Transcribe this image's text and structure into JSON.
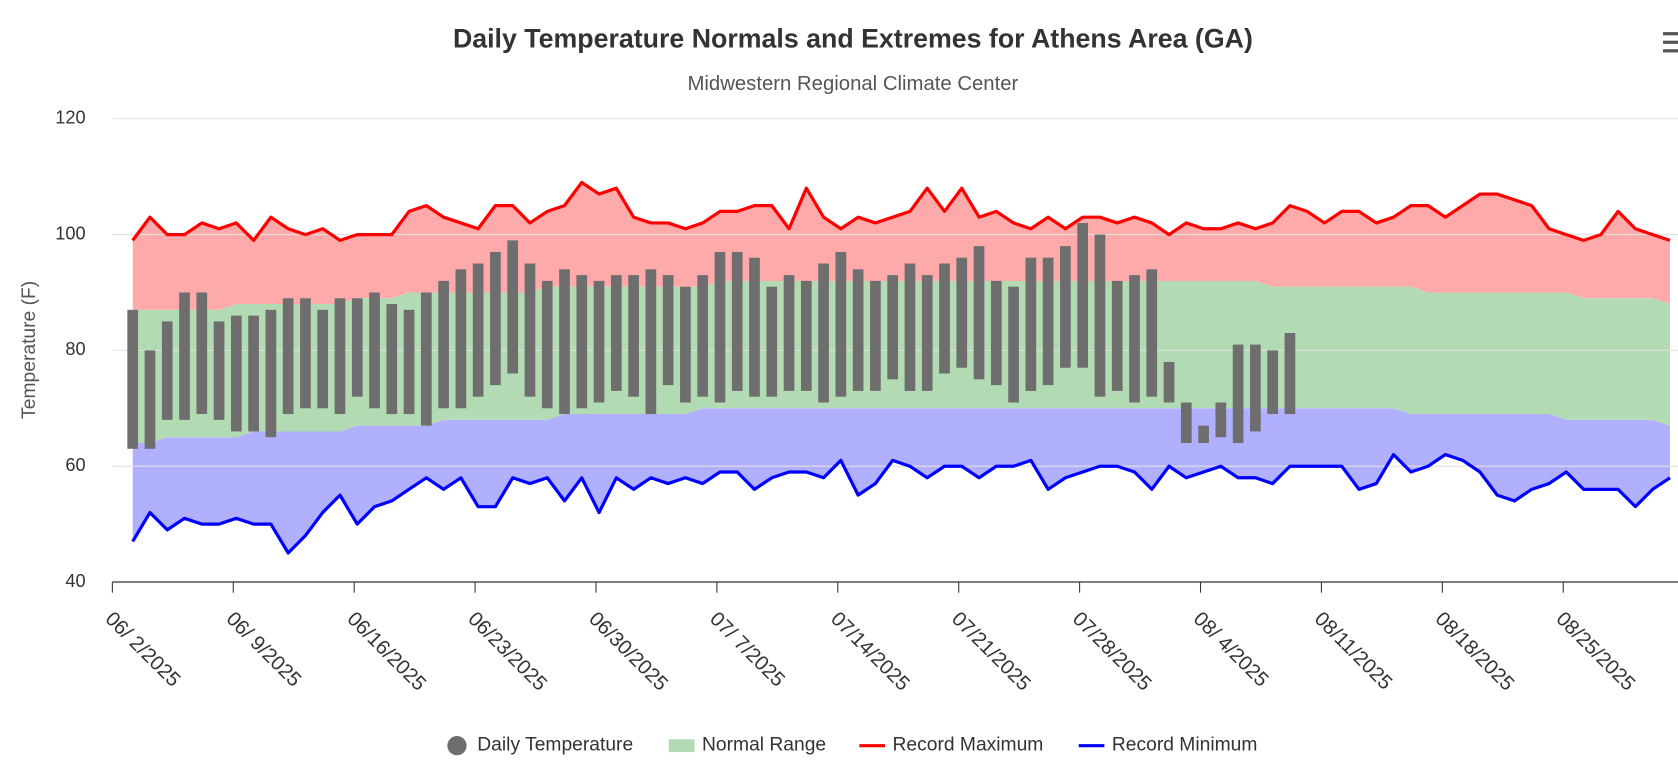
{
  "chart_data": {
    "type": "line",
    "title": "Daily Temperature Normals and Extremes for Athens Area (GA)",
    "subtitle": "Midwestern Regional Climate Center",
    "y_label": "Temperature (F)",
    "ylim": [
      40,
      120
    ],
    "yticks": [
      40,
      60,
      80,
      100,
      120
    ],
    "grid": true,
    "legend": "bottom",
    "categories": [
      "06/ 2/2025",
      null,
      null,
      null,
      null,
      null,
      null,
      "06/ 9/2025",
      null,
      null,
      null,
      null,
      null,
      null,
      "06/16/2025",
      null,
      null,
      null,
      null,
      null,
      null,
      "06/23/2025",
      null,
      null,
      null,
      null,
      null,
      null,
      "06/30/2025",
      null,
      null,
      null,
      null,
      null,
      null,
      "07/ 7/2025",
      null,
      null,
      null,
      null,
      null,
      null,
      "07/14/2025",
      null,
      null,
      null,
      null,
      null,
      null,
      "07/21/2025",
      null,
      null,
      null,
      null,
      null,
      null,
      "07/28/2025",
      null,
      null,
      null,
      null,
      null,
      null,
      "08/ 4/2025",
      null,
      null,
      null,
      null,
      null,
      null,
      "08/11/2025",
      null,
      null,
      null,
      null,
      null,
      null,
      "08/18/2025",
      null,
      null,
      null,
      null,
      null,
      null,
      "08/25/2025",
      null,
      null,
      null,
      null,
      null
    ],
    "series": [
      {
        "name": "Daily Temperature",
        "type": "columnrange",
        "color": "#6e6e6e",
        "low": [
          63,
          63,
          68,
          68,
          69,
          68,
          66,
          66,
          65,
          69,
          70,
          70,
          69,
          72,
          70,
          69,
          69,
          67,
          70,
          70,
          72,
          74,
          76,
          72,
          70,
          69,
          70,
          71,
          73,
          72,
          69,
          74,
          71,
          72,
          71,
          73,
          72,
          72,
          73,
          73,
          71,
          72,
          73,
          73,
          75,
          73,
          73,
          76,
          77,
          75,
          74,
          71,
          73,
          74,
          77,
          77,
          72,
          73,
          71,
          72,
          71,
          64,
          64,
          65,
          64,
          66,
          69,
          69,
          null,
          null,
          null,
          null,
          null,
          null,
          null,
          null,
          null,
          null,
          null,
          null,
          null,
          null,
          null,
          null,
          null,
          null,
          null,
          null,
          null,
          null
        ],
        "high": [
          87,
          80,
          85,
          90,
          90,
          85,
          86,
          86,
          87,
          89,
          89,
          87,
          89,
          89,
          90,
          88,
          87,
          90,
          92,
          94,
          95,
          97,
          99,
          95,
          92,
          94,
          93,
          92,
          93,
          93,
          94,
          93,
          91,
          93,
          97,
          97,
          96,
          91,
          93,
          92,
          95,
          97,
          94,
          92,
          93,
          95,
          93,
          95,
          96,
          98,
          92,
          91,
          96,
          96,
          98,
          102,
          100,
          92,
          93,
          94,
          78,
          71,
          67,
          71,
          81,
          81,
          80,
          83,
          null,
          null,
          null,
          null,
          null,
          null,
          null,
          null,
          null,
          null,
          null,
          null,
          null,
          null,
          null,
          null,
          null,
          null,
          null,
          null,
          null,
          null
        ]
      },
      {
        "name": "Normal Range",
        "type": "arearange",
        "color": "#b3dbb3",
        "low": [
          64,
          64,
          65,
          65,
          65,
          65,
          65,
          66,
          66,
          66,
          66,
          66,
          66,
          67,
          67,
          67,
          67,
          67,
          68,
          68,
          68,
          68,
          68,
          68,
          68,
          69,
          69,
          69,
          69,
          69,
          69,
          69,
          69,
          70,
          70,
          70,
          70,
          70,
          70,
          70,
          70,
          70,
          70,
          70,
          70,
          70,
          70,
          70,
          70,
          70,
          70,
          70,
          70,
          70,
          70,
          70,
          70,
          70,
          70,
          70,
          70,
          70,
          70,
          70,
          70,
          70,
          70,
          70,
          70,
          70,
          70,
          70,
          70,
          70,
          69,
          69,
          69,
          69,
          69,
          69,
          69,
          69,
          69,
          68,
          68,
          68,
          68,
          68,
          68,
          67
        ],
        "high": [
          87,
          87,
          87,
          87,
          87,
          87,
          88,
          88,
          88,
          88,
          88,
          88,
          88,
          89,
          89,
          89,
          90,
          90,
          90,
          90,
          90,
          90,
          90,
          90,
          91,
          91,
          91,
          91,
          91,
          91,
          91,
          91,
          91,
          91,
          92,
          92,
          92,
          92,
          92,
          92,
          92,
          92,
          92,
          92,
          92,
          92,
          92,
          92,
          92,
          92,
          92,
          92,
          92,
          92,
          92,
          92,
          92,
          92,
          92,
          92,
          92,
          92,
          92,
          92,
          92,
          92,
          91,
          91,
          91,
          91,
          91,
          91,
          91,
          91,
          91,
          90,
          90,
          90,
          90,
          90,
          90,
          90,
          90,
          90,
          89,
          89,
          89,
          89,
          89,
          88
        ]
      },
      {
        "name": "Record Maximum",
        "type": "line",
        "color": "#ff0000",
        "fill": "#ffaaaa",
        "values": [
          99,
          103,
          100,
          100,
          102,
          101,
          102,
          99,
          103,
          101,
          100,
          101,
          99,
          100,
          100,
          100,
          104,
          105,
          103,
          102,
          101,
          105,
          105,
          102,
          104,
          105,
          109,
          107,
          108,
          103,
          102,
          102,
          101,
          102,
          104,
          104,
          105,
          105,
          101,
          108,
          103,
          101,
          103,
          102,
          103,
          104,
          108,
          104,
          108,
          103,
          104,
          102,
          101,
          103,
          101,
          103,
          103,
          102,
          103,
          102,
          100,
          102,
          101,
          101,
          102,
          101,
          102,
          105,
          104,
          102,
          104,
          104,
          102,
          103,
          105,
          105,
          103,
          105,
          107,
          107,
          106,
          105,
          101,
          100,
          99,
          100,
          104,
          101,
          100,
          99
        ]
      },
      {
        "name": "Record Minimum",
        "type": "line",
        "color": "#0000ff",
        "fill": "#b0b0ff",
        "values": [
          47,
          52,
          49,
          51,
          50,
          50,
          51,
          50,
          50,
          45,
          48,
          52,
          55,
          50,
          53,
          54,
          56,
          58,
          56,
          58,
          53,
          53,
          58,
          57,
          58,
          54,
          58,
          52,
          58,
          56,
          58,
          57,
          58,
          57,
          59,
          59,
          56,
          58,
          59,
          59,
          58,
          61,
          55,
          57,
          61,
          60,
          58,
          60,
          60,
          58,
          60,
          60,
          61,
          56,
          58,
          59,
          60,
          60,
          59,
          56,
          60,
          58,
          59,
          60,
          58,
          58,
          57,
          60,
          60,
          60,
          60,
          56,
          57,
          62,
          59,
          60,
          62,
          61,
          59,
          55,
          54,
          56,
          57,
          59,
          56,
          56,
          56,
          53,
          56,
          58
        ]
      }
    ]
  }
}
